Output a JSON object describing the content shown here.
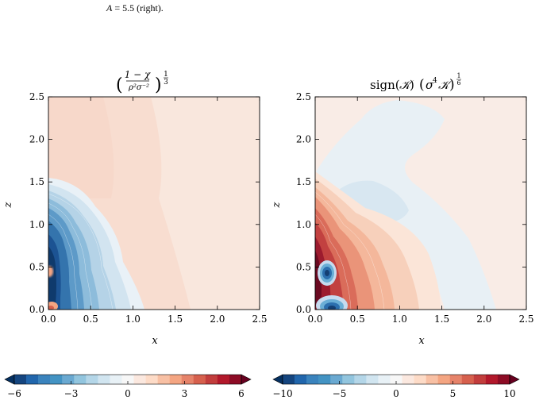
{
  "caption": "A = 5.5 (right).",
  "chart_data": [
    {
      "type": "heatmap",
      "title": "((1−χ)/(ρ²σ⁻²))^(1/3)",
      "xlabel": "x",
      "ylabel": "z",
      "xlim": [
        0.0,
        2.5
      ],
      "ylim": [
        0.0,
        2.5
      ],
      "xticks": [
        "0.0",
        "0.5",
        "1.0",
        "1.5",
        "2.0",
        "2.5"
      ],
      "yticks": [
        "0.0",
        "0.5",
        "1.0",
        "1.5",
        "2.0",
        "2.5"
      ],
      "colormap": "RdBu_r",
      "colorbar": {
        "vmin": -6,
        "vmax": 6,
        "ticks": [
          "−6",
          "−3",
          "0",
          "3",
          "6"
        ],
        "extend": "both"
      },
      "background_value": 0.6,
      "features": [
        {
          "kind": "negative-lobe",
          "x_extent": 1.1,
          "z_extent": 1.6,
          "min_value": -6
        },
        {
          "kind": "positive-spot",
          "x": 0.0,
          "z": 0.42,
          "value": 3
        },
        {
          "kind": "positive-spot",
          "x": 0.03,
          "z": 0.03,
          "value": 4
        }
      ]
    },
    {
      "type": "heatmap",
      "title": "sign(𝒦) (σ⁴𝒦)^(1/6)",
      "xlabel": "x",
      "ylabel": "z",
      "xlim": [
        0.0,
        2.5
      ],
      "ylim": [
        0.0,
        2.5
      ],
      "xticks": [
        "0.0",
        "0.5",
        "1.0",
        "1.5",
        "2.0",
        "2.5"
      ],
      "yticks": [
        "0.0",
        "0.5",
        "1.0",
        "1.5",
        "2.0",
        "2.5"
      ],
      "colormap": "RdBu_r",
      "colorbar": {
        "vmin": -10,
        "vmax": 10,
        "ticks": [
          "−10",
          "−5",
          "0",
          "5",
          "10"
        ],
        "extend": "both"
      },
      "background_value": 0.8,
      "features": [
        {
          "kind": "positive-lobe",
          "x_extent": 1.3,
          "z_extent": 1.0,
          "max_value": 10
        },
        {
          "kind": "negative-blob",
          "x": 0.12,
          "z": 0.44,
          "value": -9
        },
        {
          "kind": "negative-blob",
          "x": 0.15,
          "z": 0.06,
          "value": -9
        },
        {
          "kind": "negative-band",
          "description": "broad faint negative band",
          "value": -0.8
        }
      ]
    }
  ]
}
